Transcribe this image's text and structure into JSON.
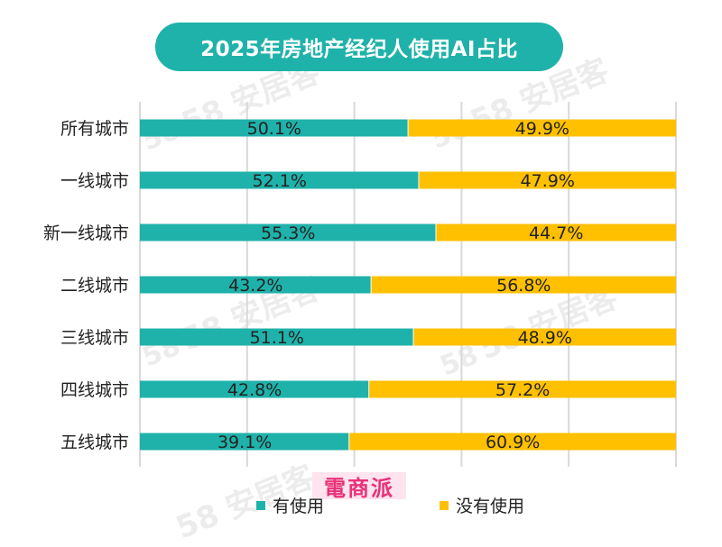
{
  "title": "2025年房地产经纪人使用AI占比",
  "watermark": "58 安居客",
  "stamp": "電商派",
  "colors": {
    "title_bg": "#1fb2aa",
    "used": "#1fb2aa",
    "not_used": "#ffc000",
    "grid": "#d9d9d9"
  },
  "chart_data": {
    "type": "bar",
    "orientation": "horizontal",
    "stacked": true,
    "categories": [
      "所有城市",
      "一线城市",
      "新一线城市",
      "二线城市",
      "三线城市",
      "四线城市",
      "五线城市"
    ],
    "series": [
      {
        "name": "有使用",
        "values": [
          50.1,
          52.1,
          55.3,
          43.2,
          51.1,
          42.8,
          39.1
        ]
      },
      {
        "name": "没有使用",
        "values": [
          49.9,
          47.9,
          44.7,
          56.8,
          48.9,
          57.2,
          60.9
        ]
      }
    ],
    "value_suffix": "%",
    "xlim": [
      0,
      100
    ],
    "grid": true,
    "legend_position": "bottom"
  },
  "legend": [
    {
      "label": "有使用",
      "color": "#1fb2aa"
    },
    {
      "label": "没有使用",
      "color": "#ffc000"
    }
  ]
}
